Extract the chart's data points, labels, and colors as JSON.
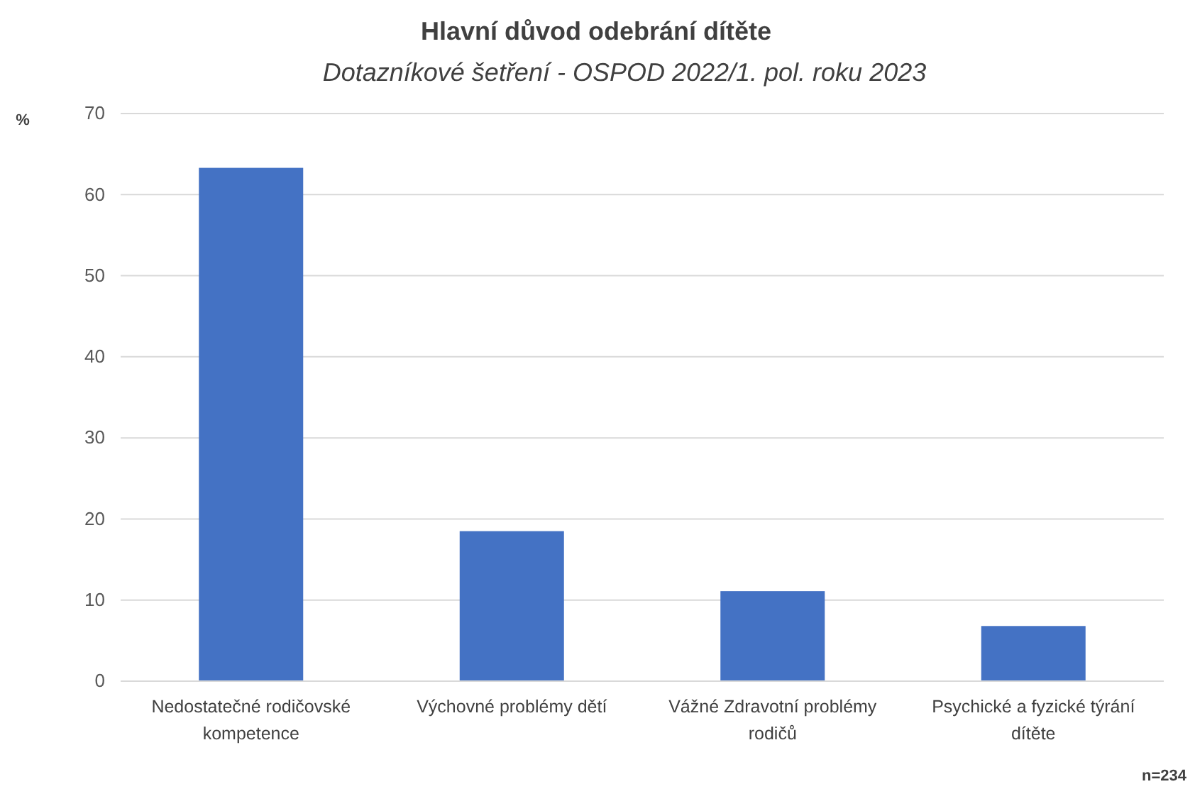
{
  "chart_data": {
    "type": "bar",
    "title": "Hlavní důvod odebrání dítěte",
    "subtitle": "Dotazníkové šetření - OSPOD 2022/1. pol. roku 2023",
    "ylabel": "%",
    "categories": [
      "Nedostatečné rodičovské kompetence",
      "Výchovné problémy dětí",
      "Vážné Zdravotní problémy rodičů",
      "Psychické a fyzické týrání dítěte"
    ],
    "values": [
      63.3,
      18.5,
      11.1,
      6.8
    ],
    "color": "#4472c4",
    "ylim": [
      0,
      70
    ],
    "yticks": [
      0,
      10,
      20,
      30,
      40,
      50,
      60,
      70
    ],
    "grid": "y",
    "annotations": [
      "n=234"
    ]
  }
}
